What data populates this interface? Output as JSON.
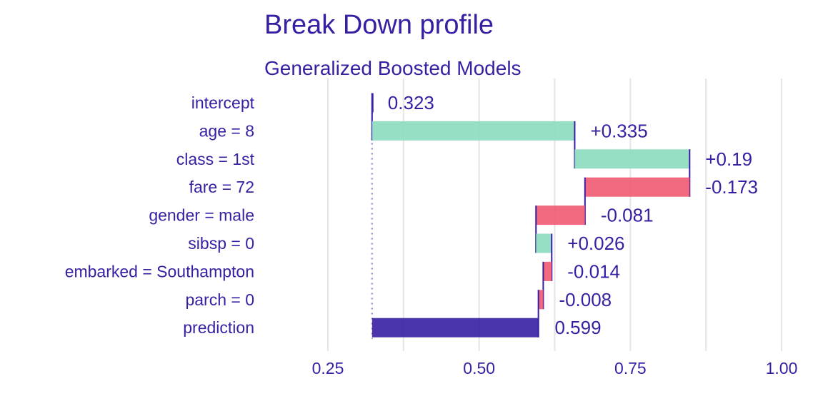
{
  "chart_data": {
    "type": "bar",
    "title": "Break Down profile",
    "subtitle": "Generalized Boosted Models",
    "xlim": [
      0.18,
      1.02
    ],
    "x_ticks": [
      0.25,
      0.5,
      0.75,
      1.0
    ],
    "x_tick_labels": [
      "0.25",
      "0.50",
      "0.75",
      "1.00"
    ],
    "baseline": 0.323,
    "grid": true,
    "colors": {
      "positive": "#8bdcbe",
      "negative": "#f05a71",
      "prediction": "#371ea3",
      "text": "#371ea3",
      "grid": "#e5e5e5"
    },
    "bars": [
      {
        "label": "intercept",
        "start": 0.323,
        "end": 0.323,
        "value_label": "0.323",
        "kind": "intercept"
      },
      {
        "label": "age = 8",
        "start": 0.323,
        "end": 0.658,
        "value_label": "+0.335",
        "kind": "positive"
      },
      {
        "label": "class = 1st",
        "start": 0.658,
        "end": 0.848,
        "value_label": "+0.19",
        "kind": "positive"
      },
      {
        "label": "fare = 72",
        "start": 0.848,
        "end": 0.675,
        "value_label": "-0.173",
        "kind": "negative"
      },
      {
        "label": "gender = male",
        "start": 0.675,
        "end": 0.594,
        "value_label": "-0.081",
        "kind": "negative"
      },
      {
        "label": "sibsp = 0",
        "start": 0.594,
        "end": 0.62,
        "value_label": "+0.026",
        "kind": "positive"
      },
      {
        "label": "embarked = Southampton",
        "start": 0.62,
        "end": 0.606,
        "value_label": "-0.014",
        "kind": "negative"
      },
      {
        "label": "parch = 0",
        "start": 0.606,
        "end": 0.598,
        "value_label": "-0.008",
        "kind": "negative"
      },
      {
        "label": "prediction",
        "start": 0.323,
        "end": 0.599,
        "value_label": "0.599",
        "kind": "prediction"
      }
    ]
  }
}
